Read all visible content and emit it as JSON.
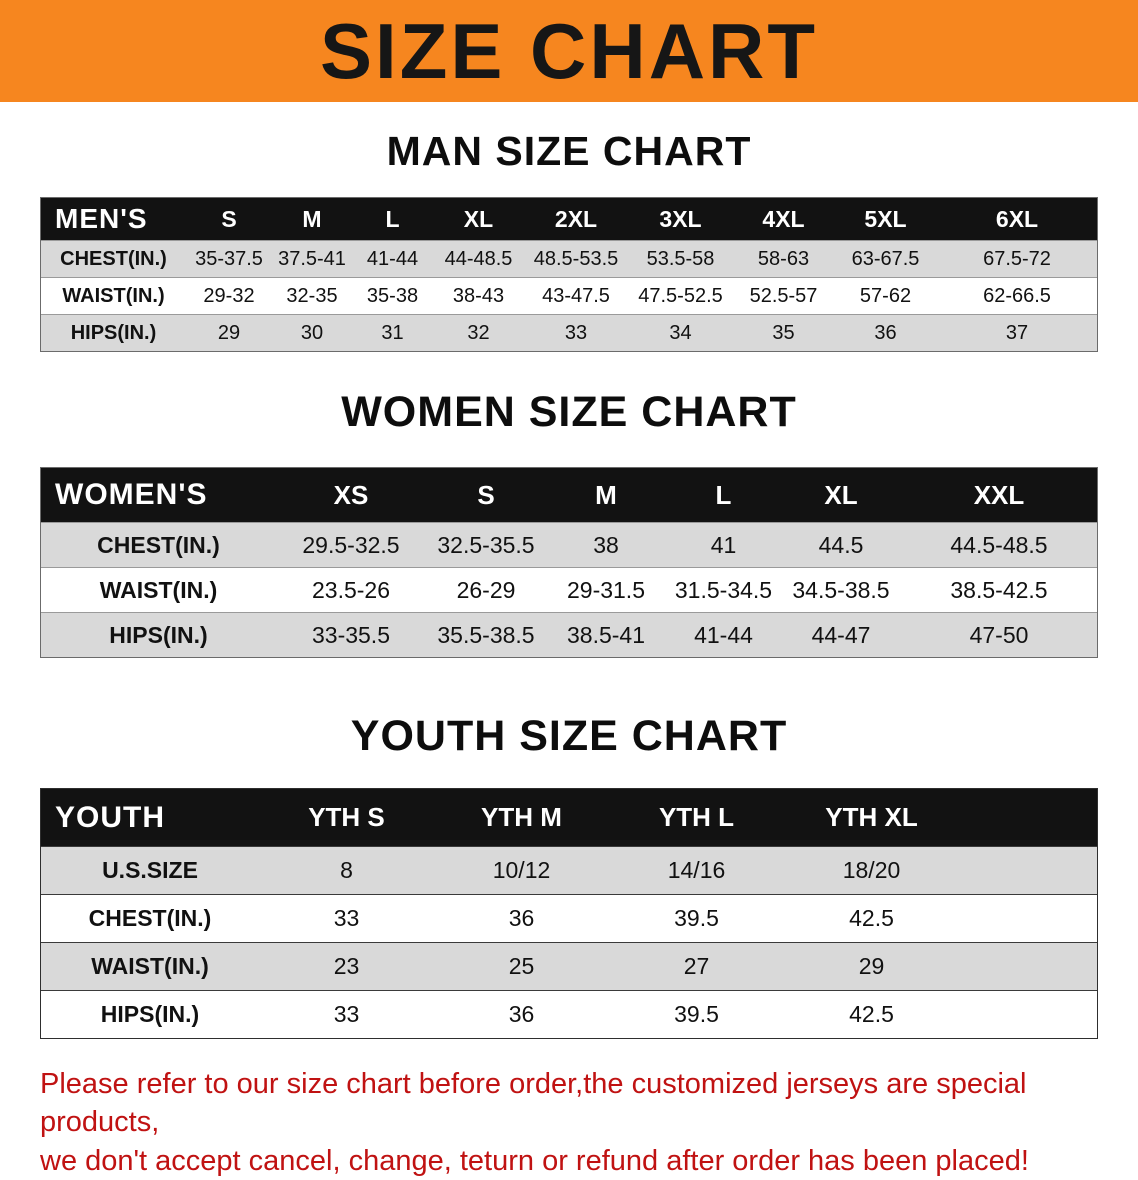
{
  "banner": {
    "title": "SIZE CHART",
    "bg_color": "#F6861F"
  },
  "sections": [
    {
      "heading": "MAN SIZE CHART",
      "table": {
        "header": [
          "MEN'S",
          "S",
          "M",
          "L",
          "XL",
          "2XL",
          "3XL",
          "4XL",
          "5XL",
          "6XL"
        ],
        "rows": [
          [
            "CHEST(IN.)",
            "35-37.5",
            "37.5-41",
            "41-44",
            "44-48.5",
            "48.5-53.5",
            "53.5-58",
            "58-63",
            "63-67.5",
            "67.5-72"
          ],
          [
            "WAIST(IN.)",
            "29-32",
            "32-35",
            "35-38",
            "38-43",
            "43-47.5",
            "47.5-52.5",
            "52.5-57",
            "57-62",
            "62-66.5"
          ],
          [
            "HIPS(IN.)",
            "29",
            "30",
            "31",
            "32",
            "33",
            "34",
            "35",
            "36",
            "37"
          ]
        ]
      }
    },
    {
      "heading": "WOMEN SIZE CHART",
      "table": {
        "header": [
          "WOMEN'S",
          "XS",
          "S",
          "M",
          "L",
          "XL",
          "XXL"
        ],
        "rows": [
          [
            "CHEST(IN.)",
            "29.5-32.5",
            "32.5-35.5",
            "38",
            "41",
            "44.5",
            "44.5-48.5"
          ],
          [
            "WAIST(IN.)",
            "23.5-26",
            "26-29",
            "29-31.5",
            "31.5-34.5",
            "34.5-38.5",
            "38.5-42.5"
          ],
          [
            "HIPS(IN.)",
            "33-35.5",
            "35.5-38.5",
            "38.5-41",
            "41-44",
            "44-47",
            "47-50"
          ]
        ]
      }
    },
    {
      "heading": "YOUTH SIZE CHART",
      "table": {
        "header": [
          "YOUTH",
          "YTH S",
          "YTH M",
          "YTH L",
          "YTH XL"
        ],
        "rows": [
          [
            "U.S.SIZE",
            "8",
            "10/12",
            "14/16",
            "18/20"
          ],
          [
            "CHEST(IN.)",
            "33",
            "36",
            "39.5",
            "42.5"
          ],
          [
            "WAIST(IN.)",
            "23",
            "25",
            "27",
            "29"
          ],
          [
            "HIPS(IN.)",
            "33",
            "36",
            "39.5",
            "42.5"
          ]
        ]
      }
    }
  ],
  "footer": {
    "line1": "Please refer to our size chart before order,the customized jerseys are special products,",
    "line2": "we don't accept cancel, change, teturn or refund after order has been placed!",
    "text_color": "#C01212"
  },
  "colors": {
    "stripe": "#D9D9D9",
    "table_header_bg": "#121212"
  }
}
